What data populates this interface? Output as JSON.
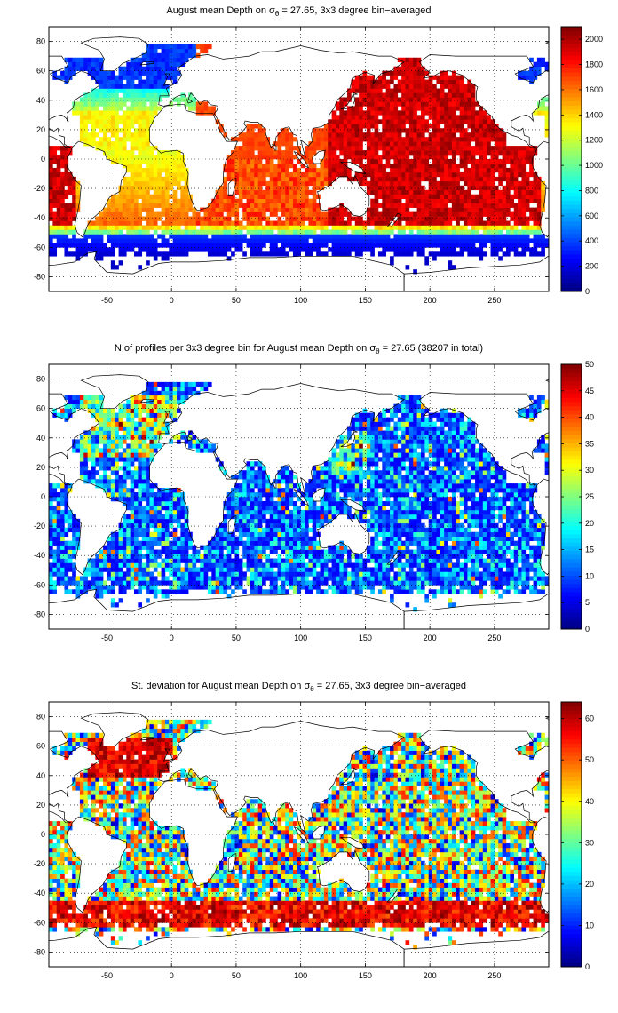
{
  "figure": {
    "panels": [
      {
        "title_before": "August mean Depth on σ",
        "title_sub": "θ",
        "title_after": " = 27.65, 3x3 degree bin−averaged",
        "colorbar_ticks": [
          "0",
          "200",
          "400",
          "600",
          "800",
          "1000",
          "1200",
          "1400",
          "1600",
          "1800",
          "2000"
        ],
        "colorbar_range": [
          0,
          2100
        ]
      },
      {
        "title_before": "N of profiles per 3x3 degree bin for August mean Depth on σ",
        "title_sub": "θ",
        "title_after": " = 27.65 (38207 in total)",
        "colorbar_ticks": [
          "0",
          "5",
          "10",
          "15",
          "20",
          "25",
          "30",
          "35",
          "40",
          "45",
          "50"
        ],
        "colorbar_range": [
          0,
          50
        ]
      },
      {
        "title_before": "St. deviation for August mean Depth on σ",
        "title_sub": "θ",
        "title_after": " = 27.65, 3x3 degree bin−averaged",
        "colorbar_ticks": [
          "0",
          "10",
          "20",
          "30",
          "40",
          "50",
          "60"
        ],
        "colorbar_range": [
          0,
          64
        ]
      }
    ],
    "x_ticks": [
      "-50",
      "0",
      "50",
      "100",
      "150",
      "200",
      "250"
    ],
    "y_ticks": [
      "80",
      "60",
      "40",
      "20",
      "0",
      "-20",
      "-40",
      "-60",
      "-80"
    ],
    "x_range": [
      -95,
      292
    ],
    "y_range": [
      -90,
      90
    ],
    "colormap": "jet",
    "grid": "dotted"
  }
}
